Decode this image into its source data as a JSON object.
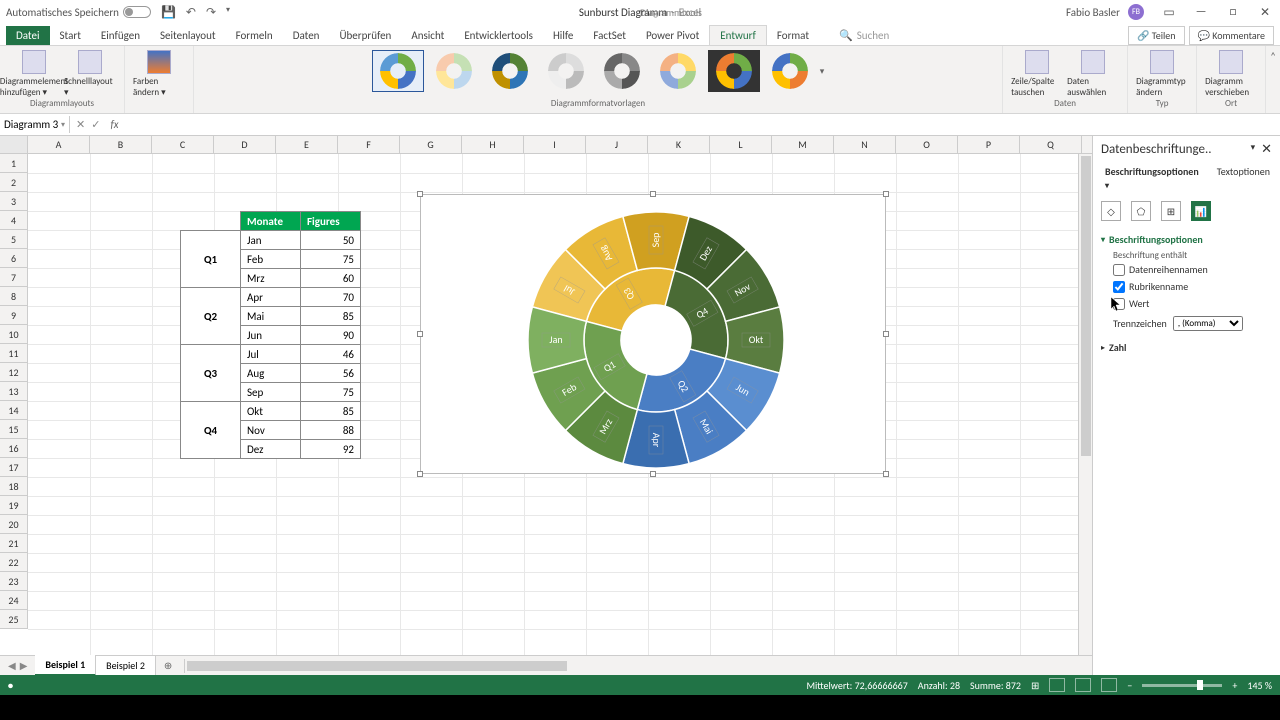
{
  "titlebar": {
    "autosave": "Automatisches Speichern",
    "doc": "Sunburst Diagramm",
    "app": "Excel",
    "tooltab": "Diagrammtools",
    "user": "Fabio Basler",
    "avatar": "FB"
  },
  "tabs": {
    "file": "Datei",
    "home": "Start",
    "insert": "Einfügen",
    "pagelayout": "Seitenlayout",
    "formulas": "Formeln",
    "data": "Daten",
    "review": "Überprüfen",
    "view": "Ansicht",
    "dev": "Entwicklertools",
    "help": "Hilfe",
    "factset": "FactSet",
    "powerpivot": "Power Pivot",
    "design": "Entwurf",
    "format": "Format",
    "search": "Suchen",
    "share": "Teilen",
    "comments": "Kommentare"
  },
  "ribbon": {
    "addelem": "Diagrammelement hinzufügen ▾",
    "quicklayout": "Schnelllayout ▾",
    "colors": "Farben ändern ▾",
    "group_layouts": "Diagrammlayouts",
    "group_styles": "Diagrammformatvorlagen",
    "switch": "Zeile/Spalte tauschen",
    "selectdata": "Daten auswählen",
    "group_data": "Daten",
    "charttype": "Diagrammtyp ändern",
    "group_type": "Typ",
    "move": "Diagramm verschieben",
    "group_loc": "Ort"
  },
  "namebox": "Diagramm 3",
  "columns": [
    "A",
    "B",
    "C",
    "D",
    "E",
    "F",
    "G",
    "H",
    "I",
    "J",
    "K",
    "L",
    "M",
    "N",
    "O",
    "P",
    "Q"
  ],
  "table": {
    "hdr_month": "Monate",
    "hdr_fig": "Figures",
    "quarters": [
      "Q1",
      "Q2",
      "Q3",
      "Q4"
    ],
    "months": [
      "Jan",
      "Feb",
      "Mrz",
      "Apr",
      "Mai",
      "Jun",
      "Jul",
      "Aug",
      "Sep",
      "Okt",
      "Nov",
      "Dez"
    ],
    "values": [
      50,
      75,
      60,
      70,
      85,
      90,
      46,
      56,
      75,
      85,
      88,
      92
    ]
  },
  "chart": {
    "inner_radius": 40,
    "mid_radius": 80,
    "outer_radius": 130,
    "quarters": [
      {
        "name": "Q1",
        "color": "#4472c4",
        "total": 185,
        "months": [
          {
            "n": "Jan",
            "c": "#6a92d4"
          },
          {
            "n": "Feb",
            "c": "#4472c4"
          },
          {
            "n": "Mrz",
            "c": "#2f5597"
          }
        ]
      },
      {
        "name": "Q2",
        "color": "#5b9bd5",
        "total": 245,
        "months": [
          {
            "n": "Apr",
            "c": "#7eb1dd"
          },
          {
            "n": "Mai",
            "c": "#5b9bd5"
          },
          {
            "n": "Jun",
            "c": "#3d7ebf"
          }
        ]
      },
      {
        "name": "Q3",
        "color": "#70ad47",
        "total": 177,
        "months": [
          {
            "n": "Jul",
            "c": "#8fc070"
          },
          {
            "n": "Aug",
            "c": "#70ad47"
          },
          {
            "n": "Sep",
            "c": "#548235"
          }
        ]
      },
      {
        "name": "Q4",
        "color": "#ffc000",
        "total": 265,
        "months": [
          {
            "n": "Okt",
            "c": "#ffd347"
          },
          {
            "n": "Nov",
            "c": "#ffc000"
          },
          {
            "n": "Dez",
            "c": "#cc9a00"
          }
        ]
      }
    ],
    "start_angle_matches_screenshot": true,
    "actual_colors": {
      "q3_yellow": "#e8b837",
      "q3_yellow_light": "#f0c555",
      "q3_yellow_dark": "#d0a020",
      "q4_dark": "#3d5a2a",
      "q4_mid": "#4a6b35",
      "q4_light": "#5a7d40",
      "q1_green": "#6fa050",
      "q1_green2": "#7fb060",
      "q1_green3": "#5c8a3f",
      "q2_blue": "#4a7ec4",
      "q2_blue2": "#3a6eb0",
      "q2_blue3": "#5a8ed0"
    }
  },
  "pane": {
    "title": "Datenbeschriftunge..",
    "tab1": "Beschriftungsoptionen",
    "tab2": "Textoptionen",
    "section": "Beschriftungsoptionen",
    "contains": "Beschriftung enthält",
    "opt_series": "Datenreihennamen",
    "opt_cat": "Rubrikenname",
    "opt_val": "Wert",
    "separator": "Trennzeichen",
    "sep_val": ", (Komma)",
    "number": "Zahl"
  },
  "sheets": {
    "s1": "Beispiel 1",
    "s2": "Beispiel 2"
  },
  "status": {
    "mean_label": "Mittelwert:",
    "mean": "72,66666667",
    "count_label": "Anzahl:",
    "count": "28",
    "sum_label": "Summe:",
    "sum": "872",
    "zoom": "145 %"
  }
}
